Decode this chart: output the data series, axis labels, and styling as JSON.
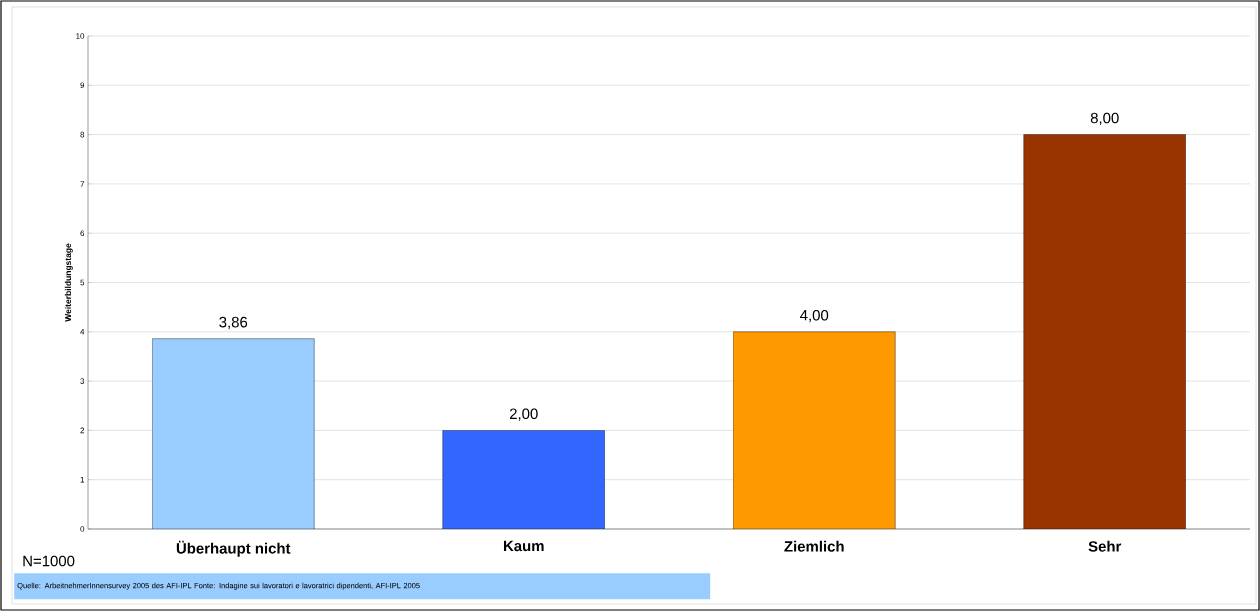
{
  "chart_data": {
    "type": "bar",
    "ylabel": "Weiterbildungstage",
    "categories": [
      "Überhaupt nicht",
      "Kaum",
      "Ziemlich",
      "Sehr"
    ],
    "values": [
      3.86,
      2,
      4,
      8
    ],
    "colors": [
      "#99ccff",
      "#3366ff",
      "#ff9900",
      "#993300"
    ],
    "value_labels": [
      "3,86",
      "2,00",
      "4,00",
      "8,00"
    ],
    "ylim": [
      0,
      10
    ],
    "yticks": [
      0,
      1,
      2,
      3,
      4,
      5,
      6,
      7,
      8,
      9,
      10
    ],
    "grid": "y",
    "annotations": [
      "N=1000",
      "Quelle: ArbeitnehmerInnensurvey 2005 des AFI-IPL    Fonte: Indagine sui lavoratori e lavoratrici dipendenti, AFI-IPL 2005"
    ]
  }
}
